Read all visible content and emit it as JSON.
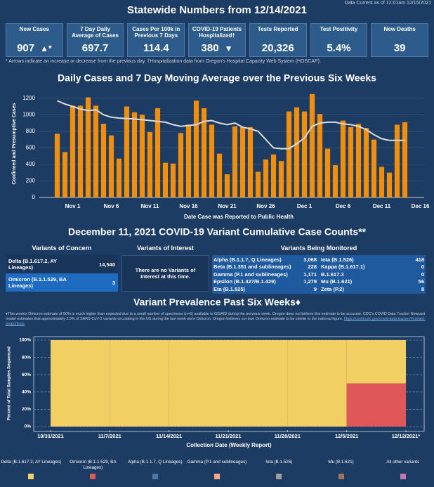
{
  "header": {
    "title": "Statewide Numbers from 12/14/2021",
    "data_current": "Data Current as of 12:01am 12/15/2021"
  },
  "kpis": [
    {
      "label": "New Cases",
      "value": "907",
      "indicator": "▲*"
    },
    {
      "label": "7 Day Daily Average of Cases",
      "value": "697.7"
    },
    {
      "label": "Cases Per 100k in Previous 7 Days",
      "value": "114.4"
    },
    {
      "label": "COVID-19 Patients Hospitalized†",
      "value": "380",
      "indicator": "▼"
    },
    {
      "label": "Tests Reported",
      "value": "20,326"
    },
    {
      "label": "Test Positivity",
      "value": "5.4%"
    },
    {
      "label": "New Deaths",
      "value": "39"
    }
  ],
  "footnote": "* Arrows indicate an increase or decrease from the previous day. †Hospitalization data from Oregon's Hospital Capacity Web System (HOSCAP).",
  "chart_data": [
    {
      "type": "bar",
      "title": "Daily Cases and 7 Day Moving Average over the Previous Six Weeks",
      "x_label": "Date Case was Reported to Public Health",
      "y_label": "Confirmed and Presumptive Cases",
      "categories": [
        null,
        null,
        "Nov 1",
        null,
        null,
        null,
        null,
        "Nov 6",
        null,
        null,
        null,
        null,
        "Nov 11",
        null,
        null,
        null,
        null,
        "Nov 16",
        null,
        null,
        null,
        null,
        "Nov 21",
        null,
        null,
        null,
        null,
        "Nov 26",
        null,
        null,
        null,
        null,
        "Dec 1",
        null,
        null,
        null,
        null,
        "Dec 6",
        null,
        null,
        null,
        null,
        "Dec 11",
        null,
        null,
        null,
        null,
        "Dec 16"
      ],
      "series": [
        {
          "type": "bar",
          "color": "#f28e0c",
          "values": [
            770,
            550,
            1110,
            1110,
            1210,
            1110,
            890,
            750,
            470,
            1100,
            1030,
            1000,
            790,
            1080,
            420,
            410,
            780,
            880,
            1170,
            1080,
            880,
            530,
            280,
            860,
            850,
            850,
            310,
            460,
            520,
            440,
            1040,
            1090,
            1040,
            1250,
            1010,
            590,
            390,
            930,
            850,
            890,
            840,
            700,
            370,
            300,
            880,
            910,
            null,
            null
          ]
        },
        {
          "type": "line",
          "color": "#dcdcdc",
          "values": [
            1170,
            1130,
            1100,
            1070,
            1050,
            1060,
            1000,
            970,
            960,
            955,
            950,
            940,
            930,
            920,
            910,
            880,
            860,
            870,
            880,
            920,
            930,
            900,
            880,
            900,
            850,
            830,
            800,
            700,
            600,
            590,
            590,
            650,
            720,
            860,
            900,
            910,
            910,
            890,
            880,
            860,
            820,
            760,
            710,
            690,
            690,
            690,
            null,
            null
          ]
        }
      ],
      "ylim": [
        0,
        1300
      ],
      "yticks": [
        0,
        200,
        400,
        600,
        800,
        1000,
        1200
      ],
      "grid": true
    },
    {
      "type": "stacked_bar",
      "title": "Variant Prevalence Past Six Weeks♦",
      "note": "♦This week's Omicron estimate of 50% is much higher than expected due to a small number of specimens (n=6) available in GISAID during the previous week. Oregon does not believe this estimate to be accurate. CDC's COVID Data Tracker Nowcast model estimates that approximately 2.9% of SARS-CoV-2 variants circulating in the US during the last week were Omicron. Oregon believes our true Omicron estimate to be similar to the national figure.",
      "note_link": "https://covid.cdc.gov/covid-data-tracker/#variant-proportions",
      "x_label": "Collection Date (Weekly Report)",
      "y_label": "Percent of Total Samples Sequenced",
      "categories": [
        "10/31/2021",
        "11/7/2021",
        "11/14/2021",
        "11/21/2021",
        "11/28/2021",
        "12/5/2021",
        "12/12/2021*"
      ],
      "series": [
        {
          "name": "Delta (B.1.617.2, AY Lineages)",
          "color": "#f1cf63",
          "values": [
            100,
            100,
            100,
            100,
            100,
            50,
            null
          ]
        },
        {
          "name": "Omicron (B.1.1.529, BA Lineages)",
          "color": "#e05759",
          "values": [
            0,
            0,
            0,
            0,
            0,
            50,
            null
          ]
        },
        {
          "name": "Alpha (B.1.1.7, Q Lineages)",
          "color": "#4e79a7",
          "values": [
            0,
            0,
            0,
            0,
            0,
            0,
            null
          ]
        },
        {
          "name": "Gamma (P.1 and sublineages)",
          "color": "#f4a582",
          "values": [
            0,
            0,
            0,
            0,
            0,
            0,
            null
          ]
        },
        {
          "name": "Iota (B.1.526)",
          "color": "#9d9d9d",
          "values": [
            0,
            0,
            0,
            0,
            0,
            0,
            null
          ]
        },
        {
          "name": "Mu (B.1.621)",
          "color": "#9c755f",
          "values": [
            0,
            0,
            0,
            0,
            0,
            0,
            null
          ]
        },
        {
          "name": "All other variants",
          "color": "#c27bb0",
          "values": [
            0,
            0,
            0,
            0,
            0,
            0,
            null
          ]
        }
      ],
      "ylim": [
        0,
        100
      ],
      "yticks": [
        {
          "value": 0,
          "label": "0%"
        },
        {
          "value": 20,
          "label": "20%"
        },
        {
          "value": 40,
          "label": "40%"
        },
        {
          "value": 60,
          "label": "60%"
        },
        {
          "value": 80,
          "label": "80%"
        },
        {
          "value": 100,
          "label": "100%"
        }
      ],
      "grid": true
    }
  ],
  "variants": {
    "title": "December 11, 2021 COVID-19 Variant Cumulative Case Counts**",
    "concern": {
      "heading": "Variants of Concern",
      "rows": [
        [
          "Delta (B.1.617.2, AY Lineages)",
          "14,540"
        ],
        [
          "Omicron (B.1.1.529, BA Lineages)",
          "3"
        ]
      ]
    },
    "interest": {
      "heading": "Variants of Interest",
      "text": "There are no Variants of Interest at this time."
    },
    "monitored": {
      "heading": "Variants Being Monitored",
      "rows": [
        [
          "Alpha (B.1.1.7, Q Lineages)",
          "3,068"
        ],
        [
          "Beta (B.1.351 and sublineages)",
          "228"
        ],
        [
          "Gamma (P.1 and sublineages)",
          "1,171"
        ],
        [
          "Epsilon (B.1.427/B.1.429)",
          "1,279"
        ],
        [
          "Eta (B.1.525)",
          "9"
        ],
        [
          "Iota (B.1.526)",
          "418"
        ],
        [
          "Kappa (B.1.617.1)",
          "0"
        ],
        [
          "B.1.617.3",
          "0"
        ],
        [
          "Mu (B.1.621)",
          "56"
        ],
        [
          "Zeta (P.2)",
          "8"
        ]
      ]
    }
  }
}
